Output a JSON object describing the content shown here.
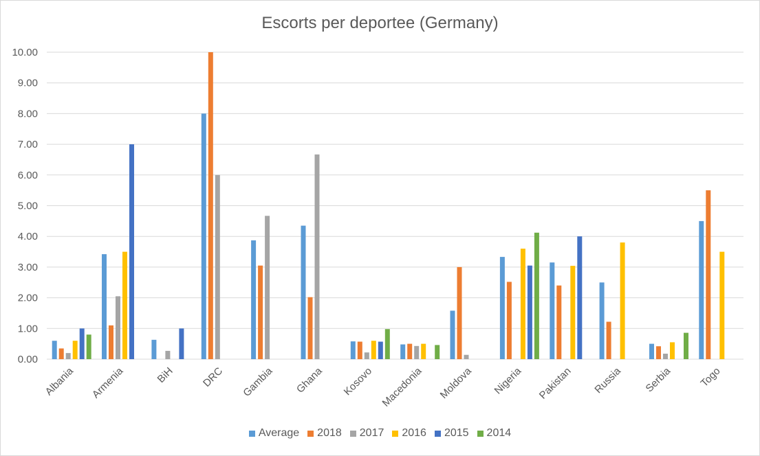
{
  "chart_data": {
    "type": "bar",
    "title": "Escorts per deportee (Germany)",
    "xlabel": "",
    "ylabel": "",
    "ylim": [
      0,
      10
    ],
    "yticks": [
      "0.00",
      "1.00",
      "2.00",
      "3.00",
      "4.00",
      "5.00",
      "6.00",
      "7.00",
      "8.00",
      "9.00",
      "10.00"
    ],
    "grid": true,
    "legend_position": "bottom",
    "categories": [
      "Albania",
      "Armenia",
      "BiH",
      "DRC",
      "Gambia",
      "Ghana",
      "Kosovo",
      "Macedonia",
      "Moldova",
      "Nigeria",
      "Pakistan",
      "Russia",
      "Serbia",
      "Togo"
    ],
    "series": [
      {
        "name": "Average",
        "color": "#5b9bd5",
        "values": [
          0.6,
          3.42,
          0.63,
          8.0,
          3.87,
          4.35,
          0.58,
          0.48,
          1.58,
          3.33,
          3.15,
          2.5,
          0.5,
          4.5
        ]
      },
      {
        "name": "2018",
        "color": "#ed7d31",
        "values": [
          0.35,
          1.1,
          null,
          10.0,
          3.05,
          2.02,
          0.57,
          0.5,
          3.0,
          2.52,
          2.4,
          1.22,
          0.42,
          5.5
        ]
      },
      {
        "name": "2017",
        "color": "#a5a5a5",
        "values": [
          0.2,
          2.05,
          0.27,
          6.0,
          4.67,
          6.67,
          0.22,
          0.43,
          0.14,
          null,
          null,
          null,
          0.18,
          null
        ]
      },
      {
        "name": "2016",
        "color": "#ffc000",
        "values": [
          0.6,
          3.5,
          null,
          null,
          null,
          null,
          0.6,
          0.5,
          null,
          3.6,
          3.04,
          3.8,
          0.55,
          3.5
        ]
      },
      {
        "name": "2015",
        "color": "#4472c4",
        "values": [
          1.0,
          7.0,
          1.0,
          null,
          null,
          null,
          0.57,
          null,
          null,
          3.05,
          4.0,
          null,
          null,
          null
        ]
      },
      {
        "name": "2014",
        "color": "#70ad47",
        "values": [
          0.8,
          null,
          null,
          null,
          null,
          null,
          0.98,
          0.46,
          null,
          4.12,
          null,
          null,
          0.86,
          null
        ]
      }
    ]
  }
}
